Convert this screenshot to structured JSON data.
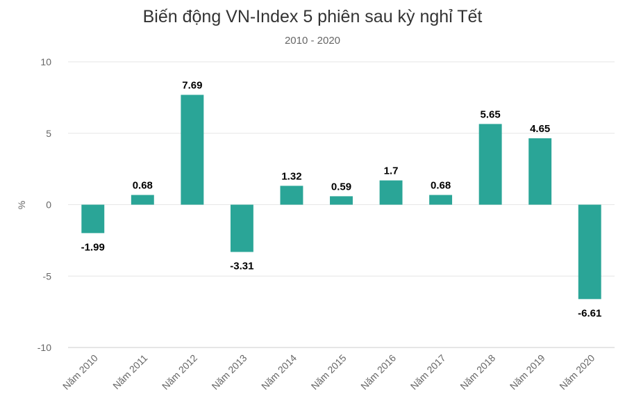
{
  "chart_data": {
    "type": "bar",
    "title": "Biến động VN-Index 5 phiên sau kỳ nghỉ Tết",
    "subtitle": "2010 - 2020",
    "ylabel": "%",
    "xlabel": "",
    "categories": [
      "Năm 2010",
      "Năm 2011",
      "Năm 2012",
      "Năm 2013",
      "Năm 2014",
      "Năm 2015",
      "Năm 2016",
      "Năm 2017",
      "Năm 2018",
      "Năm 2019",
      "Năm 2020"
    ],
    "values": [
      -1.99,
      0.68,
      7.69,
      -3.31,
      1.32,
      0.59,
      1.7,
      0.68,
      5.65,
      4.65,
      -6.61
    ],
    "value_labels": [
      "-1.99",
      "0.68",
      "7.69",
      "-3.31",
      "1.32",
      "0.59",
      "1.7",
      "0.68",
      "5.65",
      "4.65",
      "-6.61"
    ],
    "ylim": [
      -10,
      10
    ],
    "yticks": [
      10,
      5,
      0,
      -5,
      -10
    ],
    "ytick_labels": [
      "10",
      "5",
      "0",
      "-5",
      "-10"
    ],
    "bar_color": "#2aa597",
    "grid": true,
    "legend": "none"
  }
}
